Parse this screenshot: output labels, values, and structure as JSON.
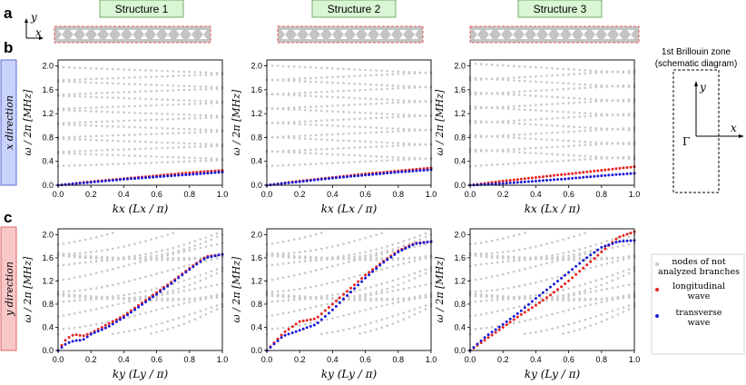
{
  "panel_labels": {
    "a": "a",
    "b": "b",
    "c": "c"
  },
  "axes_icon": {
    "x": "x",
    "y": "y"
  },
  "structures": [
    "Structure 1",
    "Structure 2",
    "Structure 3"
  ],
  "row_labels": {
    "x": "x direction",
    "y": "y direction"
  },
  "brillouin": {
    "title_line1": "1st Brillouin zone",
    "title_sup": "st",
    "title_line2": "(schematic diagram)",
    "gamma": "Γ",
    "x": "x",
    "y": "y"
  },
  "axis_labels": {
    "ylabel": "ω / 2π  [MHz]",
    "xlabel_x": "kx (Lx / π)",
    "xlabel_y": "ky (Ly / π)"
  },
  "legend": {
    "nodes": "nodes of not analyzed branches",
    "nodes_line1": "nodes of not",
    "nodes_line2": "analyzed branches",
    "long_line1": "longitudinal",
    "long_line2": "wave",
    "trans_line1": "transverse",
    "trans_line2": "wave"
  },
  "colors": {
    "longitudinal": "#e8231f",
    "transverse": "#1a1ad6",
    "other": "#c8c8c8",
    "structure_header_bg": "#d9f5d3",
    "x_row_bg": "#c9d3fb",
    "y_row_bg": "#f8c8c8"
  },
  "chart_data": [
    {
      "type": "scatter",
      "row": "x",
      "structure": "Structure 1",
      "x": [
        0,
        0.2,
        0.4,
        0.6,
        0.8,
        1.0
      ],
      "xlim": [
        0,
        1
      ],
      "ylim": [
        0,
        2.1
      ],
      "xticks": [
        "0.0",
        "0.2",
        "0.4",
        "0.6",
        "0.8",
        "1.0"
      ],
      "yticks": [
        "0.0",
        "0.4",
        "0.8",
        "1.2",
        "1.6",
        "2.0"
      ],
      "series": [
        {
          "name": "longitudinal wave",
          "values": [
            0,
            0.06,
            0.11,
            0.16,
            0.21,
            0.25
          ]
        },
        {
          "name": "transverse wave",
          "values": [
            0,
            0.05,
            0.1,
            0.14,
            0.18,
            0.22
          ]
        }
      ],
      "other_branches": "folded gray branches between 0.3 and 2.0 MHz"
    },
    {
      "type": "scatter",
      "row": "x",
      "structure": "Structure 2",
      "x": [
        0,
        0.2,
        0.4,
        0.6,
        0.8,
        1.0
      ],
      "xlim": [
        0,
        1
      ],
      "ylim": [
        0,
        2.1
      ],
      "xticks": [
        "0.0",
        "0.2",
        "0.4",
        "0.6",
        "0.8",
        "1.0"
      ],
      "yticks": [
        "0.0",
        "0.4",
        "0.8",
        "1.2",
        "1.6",
        "2.0"
      ],
      "series": [
        {
          "name": "longitudinal wave",
          "values": [
            0,
            0.07,
            0.13,
            0.19,
            0.24,
            0.29
          ]
        },
        {
          "name": "transverse wave",
          "values": [
            0,
            0.06,
            0.12,
            0.17,
            0.22,
            0.26
          ]
        }
      ],
      "other_branches": "folded gray branches between 0.3 and 2.0 MHz"
    },
    {
      "type": "scatter",
      "row": "x",
      "structure": "Structure 3",
      "x": [
        0,
        0.2,
        0.4,
        0.6,
        0.8,
        1.0
      ],
      "xlim": [
        0,
        1
      ],
      "ylim": [
        0,
        2.1
      ],
      "xticks": [
        "0.0",
        "0.2",
        "0.4",
        "0.6",
        "0.8",
        "1.0"
      ],
      "yticks": [
        "0.0",
        "0.4",
        "0.8",
        "1.2",
        "1.6",
        "2.0"
      ],
      "series": [
        {
          "name": "longitudinal wave",
          "values": [
            0,
            0.07,
            0.13,
            0.19,
            0.25,
            0.31
          ]
        },
        {
          "name": "transverse wave",
          "values": [
            0,
            0.03,
            0.07,
            0.11,
            0.16,
            0.2
          ]
        }
      ],
      "other_branches": "folded gray branches between 0.3 and 2.0 MHz"
    },
    {
      "type": "scatter",
      "row": "y",
      "structure": "Structure 1",
      "x": [
        0,
        0.05,
        0.1,
        0.15,
        0.2,
        0.3,
        0.4,
        0.5,
        0.6,
        0.7,
        0.8,
        0.9,
        1.0
      ],
      "xlim": [
        0,
        1
      ],
      "ylim": [
        0,
        2.1
      ],
      "xticks": [
        "0.0",
        "0.2",
        "0.4",
        "0.6",
        "0.8",
        "1.0"
      ],
      "yticks": [
        "0.0",
        "0.4",
        "0.8",
        "1.2",
        "1.6",
        "2.0"
      ],
      "series": [
        {
          "name": "longitudinal wave",
          "values": [
            0,
            0.2,
            0.28,
            0.25,
            0.3,
            0.45,
            0.6,
            0.8,
            1.0,
            1.2,
            1.42,
            1.62,
            1.66
          ]
        },
        {
          "name": "transverse wave",
          "values": [
            0,
            0.12,
            0.17,
            0.18,
            0.28,
            0.4,
            0.57,
            0.77,
            0.97,
            1.18,
            1.4,
            1.6,
            1.66
          ]
        }
      ],
      "other_branches": "gray branches filling 0.3–2.0 MHz"
    },
    {
      "type": "scatter",
      "row": "y",
      "structure": "Structure 2",
      "x": [
        0,
        0.1,
        0.15,
        0.2,
        0.3,
        0.4,
        0.5,
        0.6,
        0.7,
        0.8,
        0.9,
        1.0
      ],
      "xlim": [
        0,
        1
      ],
      "ylim": [
        0,
        2.1
      ],
      "xticks": [
        "0.0",
        "0.2",
        "0.4",
        "0.6",
        "0.8",
        "1.0"
      ],
      "yticks": [
        "0.0",
        "0.4",
        "0.8",
        "1.2",
        "1.6",
        "2.0"
      ],
      "series": [
        {
          "name": "longitudinal wave",
          "values": [
            0,
            0.3,
            0.4,
            0.5,
            0.55,
            0.8,
            1.05,
            1.3,
            1.52,
            1.72,
            1.85,
            1.88
          ]
        },
        {
          "name": "transverse wave",
          "values": [
            0,
            0.25,
            0.3,
            0.35,
            0.45,
            0.7,
            0.98,
            1.25,
            1.5,
            1.7,
            1.84,
            1.88
          ]
        }
      ],
      "other_branches": "gray branches filling 0.3–2.0 MHz"
    },
    {
      "type": "scatter",
      "row": "y",
      "structure": "Structure 3",
      "x": [
        0,
        0.1,
        0.2,
        0.3,
        0.4,
        0.5,
        0.6,
        0.7,
        0.8,
        0.9,
        1.0
      ],
      "xlim": [
        0,
        1
      ],
      "ylim": [
        0,
        2.1
      ],
      "xticks": [
        "0.0",
        "0.2",
        "0.4",
        "0.6",
        "0.8",
        "1.0"
      ],
      "yticks": [
        "0.0",
        "0.4",
        "0.8",
        "1.2",
        "1.6",
        "2.0"
      ],
      "series": [
        {
          "name": "longitudinal wave",
          "values": [
            0,
            0.2,
            0.4,
            0.6,
            0.78,
            0.98,
            1.2,
            1.45,
            1.7,
            1.95,
            2.05
          ]
        },
        {
          "name": "transverse wave",
          "values": [
            0,
            0.25,
            0.45,
            0.66,
            0.9,
            1.12,
            1.35,
            1.58,
            1.78,
            1.88,
            1.9
          ]
        }
      ],
      "other_branches": "gray branches filling 0.3–2.0 MHz"
    }
  ]
}
